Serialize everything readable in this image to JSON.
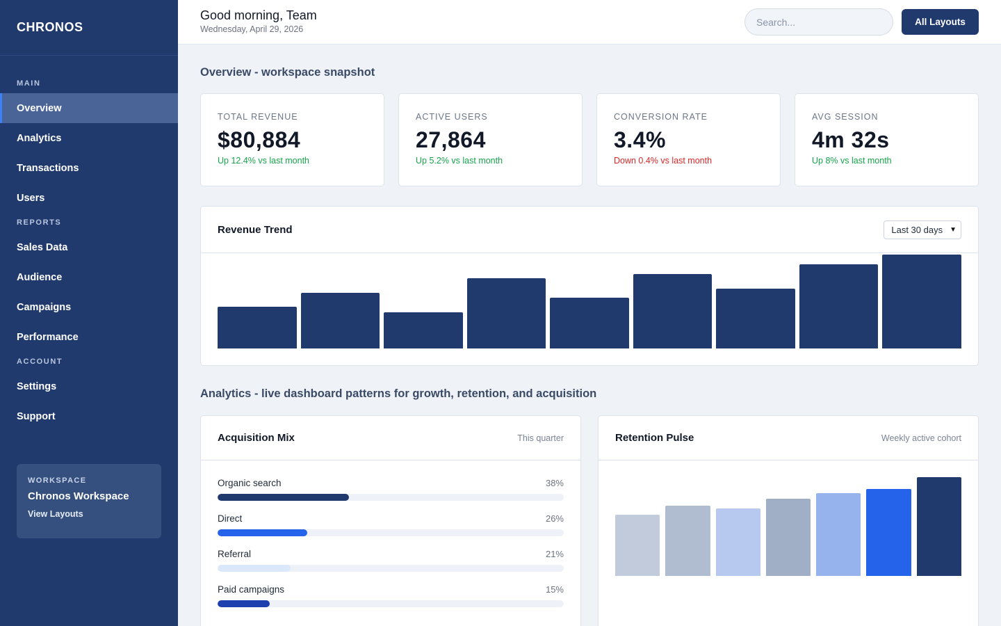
{
  "brand": "CHRONOS",
  "sidebar": {
    "sections": [
      {
        "title": "MAIN",
        "items": [
          "Overview",
          "Analytics",
          "Transactions",
          "Users"
        ]
      },
      {
        "title": "REPORTS",
        "items": [
          "Sales Data",
          "Audience",
          "Campaigns",
          "Performance"
        ]
      },
      {
        "title": "ACCOUNT",
        "items": [
          "Settings",
          "Support"
        ]
      }
    ],
    "active_item": "Overview",
    "workspace": {
      "label": "WORKSPACE",
      "name": "Chronos Workspace",
      "link": "View Layouts"
    }
  },
  "header": {
    "greeting": "Good morning, Team",
    "date": "Wednesday, April 29, 2026",
    "search_placeholder": "Search...",
    "button": "All Layouts"
  },
  "overview": {
    "title": "Overview - workspace snapshot",
    "kpis": [
      {
        "label": "TOTAL REVENUE",
        "value": "$80,884",
        "delta": "Up 12.4% vs last month",
        "trend": "up"
      },
      {
        "label": "ACTIVE USERS",
        "value": "27,864",
        "delta": "Up 5.2% vs last month",
        "trend": "up"
      },
      {
        "label": "CONVERSION RATE",
        "value": "3.4%",
        "delta": "Down 0.4% vs last month",
        "trend": "down"
      },
      {
        "label": "AVG SESSION",
        "value": "4m 32s",
        "delta": "Up 8% vs last month",
        "trend": "up"
      }
    ]
  },
  "revenue_trend": {
    "title": "Revenue Trend",
    "range": "Last 30 days"
  },
  "analytics": {
    "title": "Analytics - live dashboard patterns for growth, retention, and acquisition",
    "acquisition": {
      "title": "Acquisition Mix",
      "subtitle": "This quarter",
      "channels": [
        {
          "name": "Organic search",
          "pct": "38%",
          "value": 38,
          "color": "#213a6e"
        },
        {
          "name": "Direct",
          "pct": "26%",
          "value": 26,
          "color": "#2563eb"
        },
        {
          "name": "Referral",
          "pct": "21%",
          "value": 21,
          "color": "#dbe7fb"
        },
        {
          "name": "Paid campaigns",
          "pct": "15%",
          "value": 15,
          "color": "#1e40af"
        }
      ]
    },
    "retention": {
      "title": "Retention Pulse",
      "subtitle": "Weekly active cohort"
    }
  },
  "chart_data": [
    {
      "type": "bar",
      "title": "Revenue Trend",
      "values": [
        44,
        59,
        38,
        74,
        54,
        79,
        63,
        89,
        99
      ],
      "ylim": [
        0,
        100
      ],
      "colors": [
        "#213a6e"
      ]
    },
    {
      "type": "bar",
      "title": "Retention Pulse",
      "values": [
        62,
        71,
        68,
        78,
        84,
        88,
        100
      ],
      "ylim": [
        0,
        100
      ],
      "colors": [
        "#c2cbdb",
        "#b0bccf",
        "#b8c9ef",
        "#a0aec6",
        "#97b3ee",
        "#2563eb",
        "#213a6e"
      ]
    }
  ]
}
